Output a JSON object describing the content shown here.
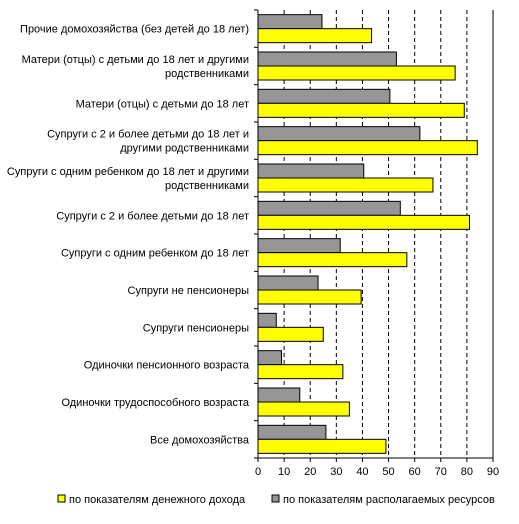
{
  "chart_data": {
    "type": "bar",
    "orientation": "horizontal",
    "categories": [
      [
        "Прочие домохозяйства (без детей до 18 лет)"
      ],
      [
        "Матери (отцы) с детьми до 18 лет и другими",
        "родственниками"
      ],
      [
        "Матери (отцы) с детьми до 18 лет"
      ],
      [
        "Супруги с 2 и более детьми до 18 лет и",
        "другими родственниками"
      ],
      [
        "Супруги с одним ребенком до 18 лет и другими",
        "родственниками"
      ],
      [
        "Супруги с 2 и более детьми до 18 лет"
      ],
      [
        "Супруги с одним ребенком до 18 лет"
      ],
      [
        "Супруги не пенсионеры"
      ],
      [
        "Супруги пенсионеры"
      ],
      [
        "Одиночки пенсионного возраста"
      ],
      [
        "Одиночки трудоспособного возраста"
      ],
      [
        "Все домохозяйства"
      ]
    ],
    "series": [
      {
        "name": "по показателям располагаемых ресурсов",
        "color": "#969696",
        "values": [
          24.5,
          53,
          50.5,
          62,
          40.5,
          54.5,
          31.5,
          23,
          7,
          9,
          16,
          26
        ]
      },
      {
        "name": "по показателям денежного дохода",
        "color": "#ffff00",
        "values": [
          43.5,
          75.5,
          79,
          84,
          67,
          81,
          57,
          39.5,
          25,
          32.5,
          35,
          49
        ]
      }
    ],
    "xlim": [
      0,
      90
    ],
    "xticks": [
      0,
      10,
      20,
      30,
      40,
      50,
      60,
      70,
      80,
      90
    ],
    "grid": "vertical dashed",
    "legend": {
      "placement": "bottom",
      "entries": [
        {
          "label": "по показателям денежного дохода",
          "color": "#ffff00"
        },
        {
          "label": "по показателям располагаемых ресурсов",
          "color": "#969696"
        }
      ]
    }
  }
}
